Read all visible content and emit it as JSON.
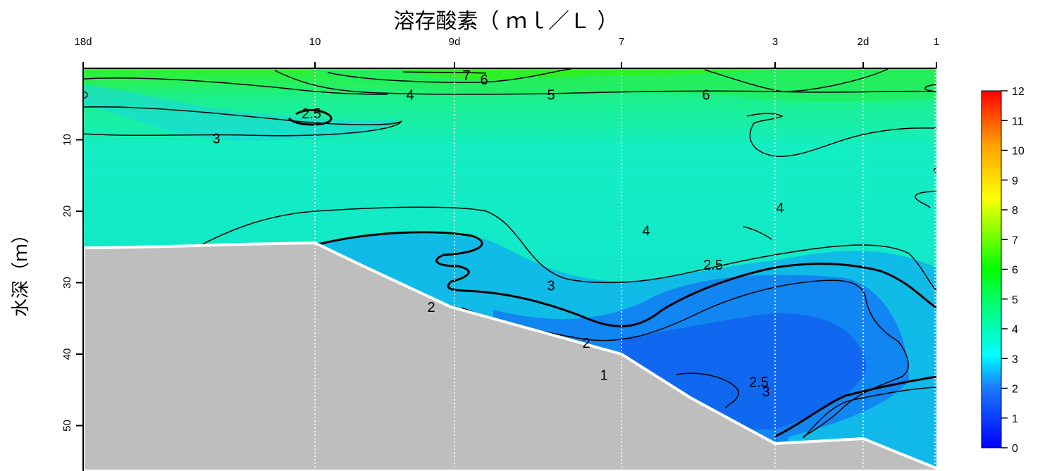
{
  "chart_data": {
    "type": "contour",
    "title": "溶存酸素（ ｍｌ／Ｌ ）",
    "ylabel": "水深（ｍ）",
    "stations": [
      "18d",
      "10",
      "9d",
      "7",
      "3",
      "2d",
      "1"
    ],
    "depth_ticks": [
      10,
      20,
      30,
      40,
      50
    ],
    "ylim": [
      0,
      57
    ],
    "colorbar": {
      "min": 0,
      "max": 12,
      "ticks": [
        0,
        1,
        2,
        3,
        4,
        5,
        6,
        7,
        8,
        9,
        10,
        11,
        12
      ]
    },
    "contour_labels": [
      {
        "text": "7",
        "station_pos": 4.3,
        "depth": 1.0
      },
      {
        "text": "6",
        "station_pos": 4.8,
        "depth": 1.6
      },
      {
        "text": "5",
        "station_pos": 6.7,
        "depth": 3.7
      },
      {
        "text": "6",
        "station_pos": 11.1,
        "depth": 3.7
      },
      {
        "text": "4",
        "station_pos": 2.7,
        "depth": 3.7
      },
      {
        "text": "2.5",
        "station_pos": -0.1,
        "depth": 6.3
      },
      {
        "text": "3",
        "station_pos": -2.8,
        "depth": 9.8
      },
      {
        "text": "4",
        "station_pos": 13.2,
        "depth": 19.5
      },
      {
        "text": "4",
        "station_pos": 9.4,
        "depth": 22.7
      },
      {
        "text": "2.5",
        "station_pos": 11.3,
        "depth": 27.5
      },
      {
        "text": "3",
        "station_pos": 6.7,
        "depth": 30.4
      },
      {
        "text": "2",
        "station_pos": 3.3,
        "depth": 33.4
      },
      {
        "text": "2",
        "station_pos": 7.7,
        "depth": 38.4
      },
      {
        "text": "1",
        "station_pos": 8.2,
        "depth": 42.9
      },
      {
        "text": "2.5",
        "station_pos": 12.6,
        "depth": 43.9
      },
      {
        "text": "3",
        "station_pos": 12.8,
        "depth": 45.2
      }
    ]
  }
}
